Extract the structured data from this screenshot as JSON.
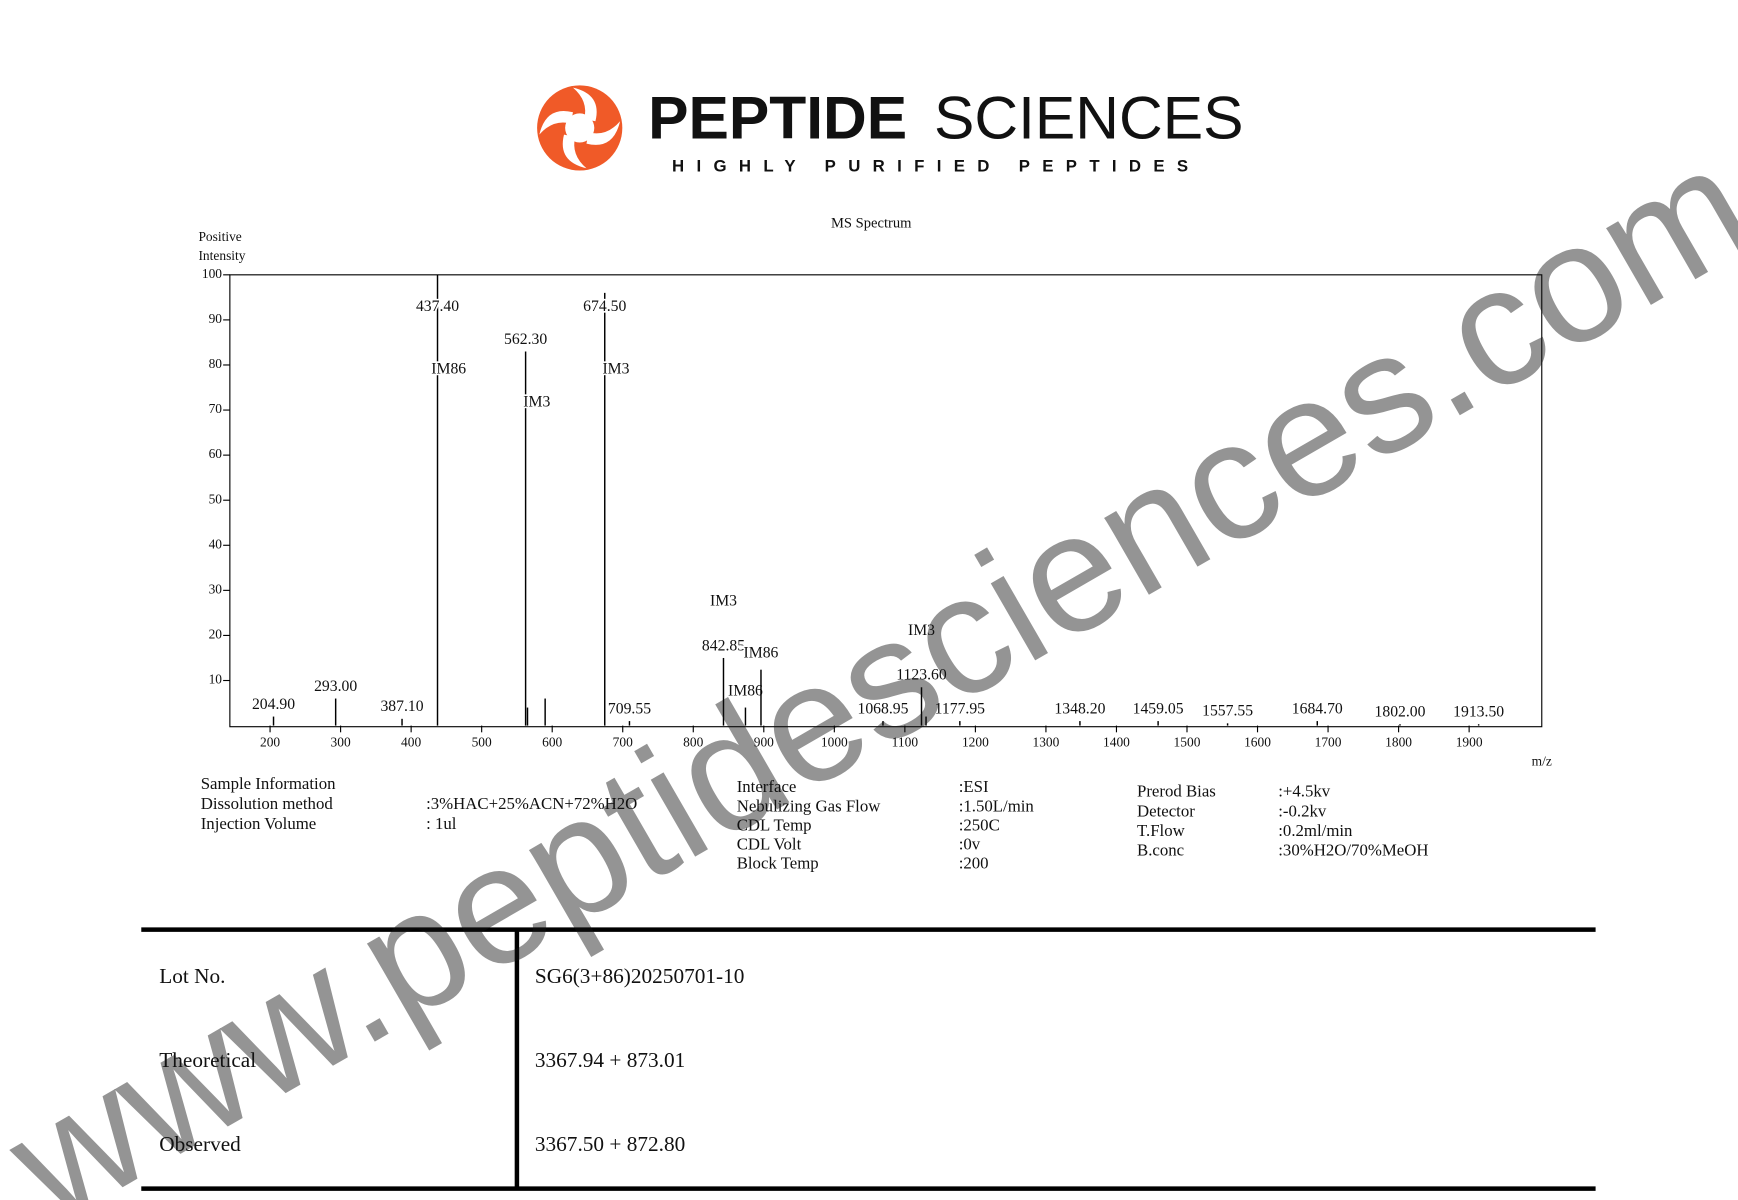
{
  "header": {
    "brand_bold": "PEPTIDE",
    "brand_light": "SCIENCES",
    "tagline": "HIGHLY PURIFIED PEPTIDES"
  },
  "chart_data": {
    "type": "spectrum",
    "title": "MS Spectrum",
    "ylabel": [
      "Positive",
      "Intensity"
    ],
    "xlabel": "m/z",
    "x": [
      204.9,
      293.0,
      387.1,
      437.4,
      562.3,
      565,
      590,
      674.5,
      709.55,
      842.85,
      874,
      896,
      1068.95,
      1123.6,
      1130,
      1177.95,
      1348.2,
      1459.05,
      1557.55,
      1684.7,
      1802.0,
      1913.5
    ],
    "x_labels": [
      "204.90",
      "293.00",
      "387.10",
      "437.40",
      "562.30",
      null,
      null,
      "674.50",
      "709.55",
      "842.85",
      null,
      null,
      "1068.95",
      "1123.60",
      null,
      "1177.95",
      "1348.20",
      "1459.05",
      "1557.55",
      "1684.70",
      "1802.00",
      "1913.50"
    ],
    "ion_labels": [
      null,
      null,
      null,
      "IM86",
      "IM3",
      null,
      null,
      "IM3",
      null,
      "IM3",
      "IM86",
      "IM86",
      null,
      "IM3",
      null,
      null,
      null,
      null,
      null,
      null,
      null,
      null
    ],
    "values": [
      2,
      6,
      1.5,
      100,
      83,
      4,
      6,
      96,
      1,
      15,
      4,
      12.4,
      1,
      8.5,
      2,
      1,
      1,
      1,
      0.5,
      1,
      0.3,
      0.3
    ],
    "color": "#000000",
    "xlim": [
      143,
      2003
    ],
    "xticks": [
      200,
      300,
      400,
      500,
      600,
      700,
      800,
      900,
      1000,
      1100,
      1200,
      1300,
      1400,
      1500,
      1600,
      1700,
      1800,
      1900
    ],
    "ylim": [
      0,
      100
    ],
    "yticks": [
      10,
      20,
      30,
      40,
      50,
      60,
      70,
      80,
      90,
      100
    ]
  },
  "sample_info": {
    "title": "Sample Information",
    "rows": [
      [
        "Dissolution method",
        ":3%HAC+25%ACN+72%H2O"
      ],
      [
        "Injection Volume",
        ": 1ul"
      ]
    ]
  },
  "instrument_info": {
    "rows": [
      [
        "Interface",
        ":ESI"
      ],
      [
        "Nebulizing Gas Flow",
        ":1.50L/min"
      ],
      [
        "CDL Temp",
        ":250C"
      ],
      [
        "CDL Volt",
        ":0v"
      ],
      [
        "Block Temp",
        ":200"
      ]
    ]
  },
  "detector_info": {
    "rows": [
      [
        "Prerod Bias",
        ":+4.5kv"
      ],
      [
        "Detector",
        ":-0.2kv"
      ],
      [
        "T.Flow",
        ":0.2ml/min"
      ],
      [
        "B.conc",
        ":30%H2O/70%MeOH"
      ]
    ]
  },
  "table": {
    "rows": [
      [
        "Lot No.",
        "SG6(3+86)20250701-10"
      ],
      [
        "Theoretical",
        "3367.94 + 873.01"
      ],
      [
        "Observed",
        "3367.50 + 872.80"
      ]
    ]
  },
  "watermark": "www.peptidesciences.com"
}
